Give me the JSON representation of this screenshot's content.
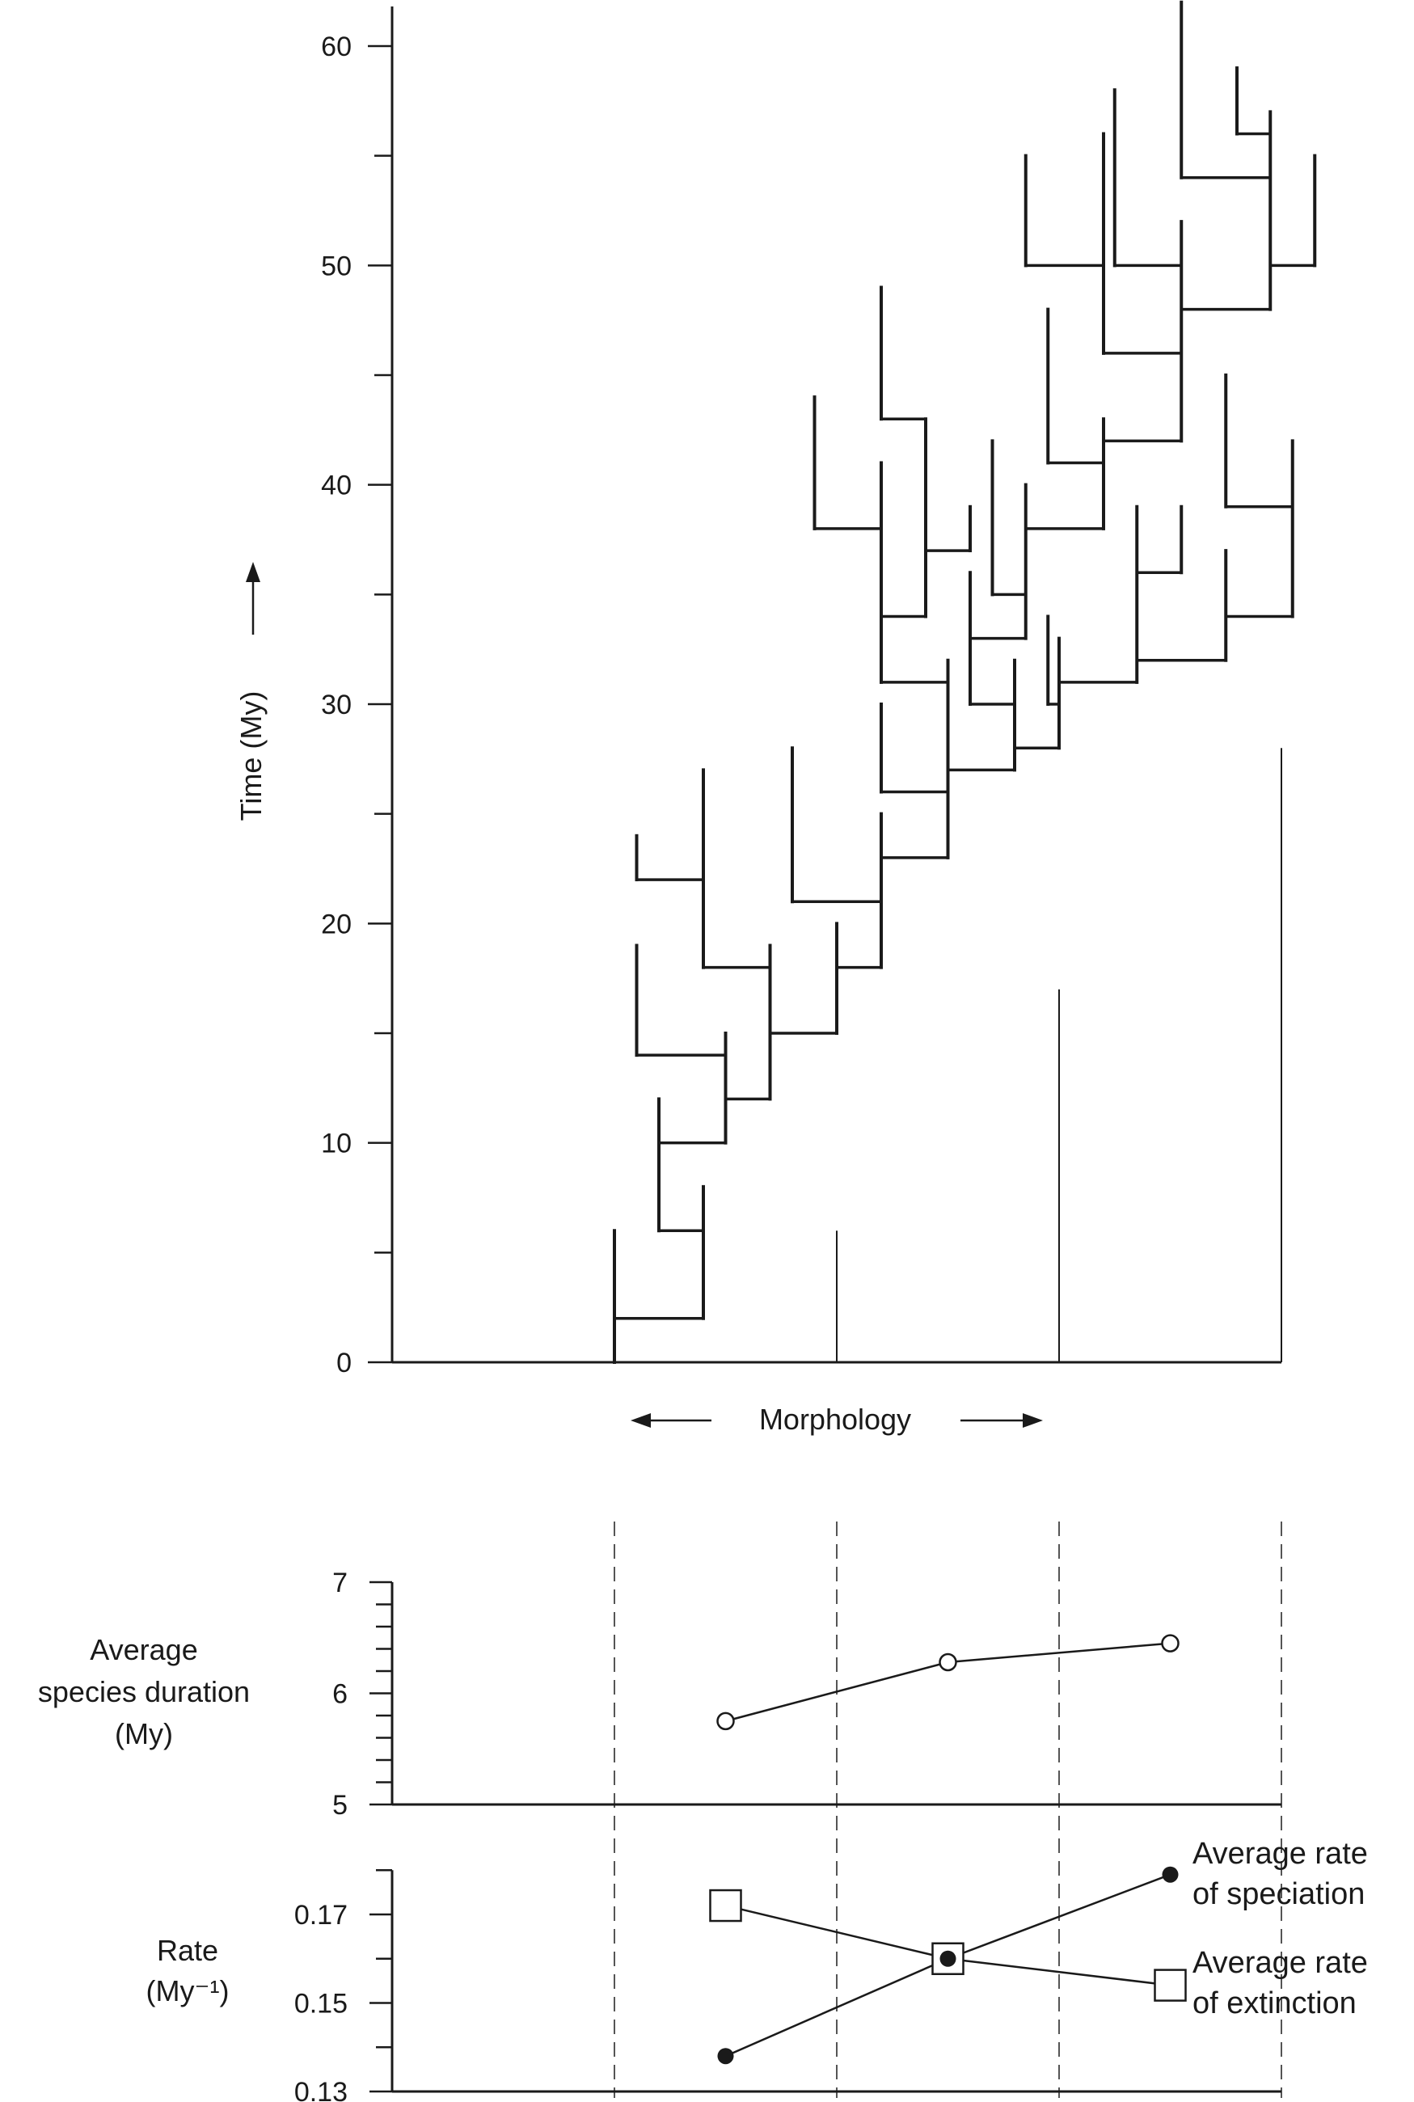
{
  "chart_data": [
    {
      "type": "phylogeny",
      "title": "",
      "ylabel": "Time (My)",
      "xlabel": "Morphology",
      "ylim": [
        0,
        62
      ],
      "y_ticks": [
        0,
        10,
        20,
        30,
        40,
        50,
        60
      ],
      "y_tick_labels": [
        "0",
        "10",
        "20",
        "30",
        "40",
        "50",
        "60"
      ],
      "x_range": [
        0,
        4
      ],
      "x_zone_boundaries": [
        1,
        2,
        3,
        4
      ],
      "zone_markers": [
        {
          "x": 2.0,
          "top": 6
        },
        {
          "x": 3.0,
          "top": 17
        },
        {
          "x": 4.0,
          "top": 28
        }
      ],
      "lineages": [
        {
          "x": 1.0,
          "start": 0,
          "end": 6
        },
        {
          "x": 1.4,
          "start": 2,
          "end": 8
        },
        {
          "x": 1.2,
          "start": 6,
          "end": 12
        },
        {
          "x": 1.5,
          "start": 10,
          "end": 15
        },
        {
          "x": 1.1,
          "start": 14,
          "end": 19
        },
        {
          "x": 1.7,
          "start": 12,
          "end": 19
        },
        {
          "x": 2.0,
          "start": 15,
          "end": 20
        },
        {
          "x": 1.4,
          "start": 18,
          "end": 27
        },
        {
          "x": 1.1,
          "start": 22,
          "end": 24
        },
        {
          "x": 2.2,
          "start": 18,
          "end": 25
        },
        {
          "x": 1.8,
          "start": 21,
          "end": 28
        },
        {
          "x": 2.5,
          "start": 23,
          "end": 32
        },
        {
          "x": 2.2,
          "start": 26,
          "end": 30
        },
        {
          "x": 2.8,
          "start": 27,
          "end": 32
        },
        {
          "x": 2.6,
          "start": 30,
          "end": 36
        },
        {
          "x": 3.0,
          "start": 28,
          "end": 33
        },
        {
          "x": 2.2,
          "start": 31,
          "end": 41
        },
        {
          "x": 2.4,
          "start": 34,
          "end": 43
        },
        {
          "x": 2.6,
          "start": 37,
          "end": 39
        },
        {
          "x": 2.2,
          "start": 43,
          "end": 49
        },
        {
          "x": 1.9,
          "start": 38,
          "end": 44
        },
        {
          "x": 2.7,
          "start": 35,
          "end": 42
        },
        {
          "x": 2.85,
          "start": 33,
          "end": 40
        },
        {
          "x": 2.95,
          "start": 30,
          "end": 34
        },
        {
          "x": 3.35,
          "start": 31,
          "end": 39
        },
        {
          "x": 3.55,
          "start": 36,
          "end": 39
        },
        {
          "x": 3.75,
          "start": 32,
          "end": 37
        },
        {
          "x": 4.05,
          "start": 34,
          "end": 42
        },
        {
          "x": 3.75,
          "start": 39,
          "end": 45
        },
        {
          "x": 3.2,
          "start": 38,
          "end": 43
        },
        {
          "x": 2.95,
          "start": 41,
          "end": 48
        },
        {
          "x": 3.55,
          "start": 42,
          "end": 52
        },
        {
          "x": 3.2,
          "start": 46,
          "end": 56
        },
        {
          "x": 2.85,
          "start": 50,
          "end": 55
        },
        {
          "x": 3.25,
          "start": 50,
          "end": 58
        },
        {
          "x": 3.95,
          "start": 48,
          "end": 57
        },
        {
          "x": 4.15,
          "start": 50,
          "end": 55
        },
        {
          "x": 3.55,
          "start": 54,
          "end": 62
        },
        {
          "x": 3.8,
          "start": 56,
          "end": 59
        }
      ],
      "speciation_connectors": [
        {
          "time": 2,
          "from_x": 1.0,
          "to_x": 1.4
        },
        {
          "time": 6,
          "from_x": 1.2,
          "to_x": 1.4
        },
        {
          "time": 10,
          "from_x": 1.2,
          "to_x": 1.5
        },
        {
          "time": 12,
          "from_x": 1.5,
          "to_x": 1.7
        },
        {
          "time": 14,
          "from_x": 1.1,
          "to_x": 1.5
        },
        {
          "time": 15,
          "from_x": 1.7,
          "to_x": 2.0
        },
        {
          "time": 18,
          "from_x": 1.4,
          "to_x": 1.7
        },
        {
          "time": 18,
          "from_x": 2.0,
          "to_x": 2.2
        },
        {
          "time": 22,
          "from_x": 1.1,
          "to_x": 1.4
        },
        {
          "time": 21,
          "from_x": 1.8,
          "to_x": 2.2
        },
        {
          "time": 23,
          "from_x": 2.2,
          "to_x": 2.5
        },
        {
          "time": 26,
          "from_x": 2.2,
          "to_x": 2.5
        },
        {
          "time": 27,
          "from_x": 2.5,
          "to_x": 2.8
        },
        {
          "time": 28,
          "from_x": 2.8,
          "to_x": 3.0
        },
        {
          "time": 30,
          "from_x": 2.6,
          "to_x": 2.8
        },
        {
          "time": 30,
          "from_x": 2.95,
          "to_x": 3.0
        },
        {
          "time": 31,
          "from_x": 2.2,
          "to_x": 2.5
        },
        {
          "time": 31,
          "from_x": 3.0,
          "to_x": 3.35
        },
        {
          "time": 32,
          "from_x": 3.35,
          "to_x": 3.75
        },
        {
          "time": 33,
          "from_x": 2.6,
          "to_x": 2.85
        },
        {
          "time": 34,
          "from_x": 2.2,
          "to_x": 2.4
        },
        {
          "time": 34,
          "from_x": 3.75,
          "to_x": 4.05
        },
        {
          "time": 35,
          "from_x": 2.7,
          "to_x": 2.85
        },
        {
          "time": 36,
          "from_x": 3.35,
          "to_x": 3.55
        },
        {
          "time": 37,
          "from_x": 2.4,
          "to_x": 2.6
        },
        {
          "time": 38,
          "from_x": 1.9,
          "to_x": 2.2
        },
        {
          "time": 38,
          "from_x": 2.85,
          "to_x": 3.2
        },
        {
          "time": 39,
          "from_x": 3.75,
          "to_x": 4.05
        },
        {
          "time": 41,
          "from_x": 2.95,
          "to_x": 3.2
        },
        {
          "time": 42,
          "from_x": 3.2,
          "to_x": 3.55
        },
        {
          "time": 43,
          "from_x": 2.2,
          "to_x": 2.4
        },
        {
          "time": 46,
          "from_x": 3.2,
          "to_x": 3.55
        },
        {
          "time": 48,
          "from_x": 3.55,
          "to_x": 3.95
        },
        {
          "time": 50,
          "from_x": 2.85,
          "to_x": 3.2
        },
        {
          "time": 50,
          "from_x": 3.25,
          "to_x": 3.55
        },
        {
          "time": 50,
          "from_x": 3.95,
          "to_x": 4.15
        },
        {
          "time": 54,
          "from_x": 3.55,
          "to_x": 3.95
        },
        {
          "time": 56,
          "from_x": 3.8,
          "to_x": 3.95
        }
      ]
    },
    {
      "type": "line",
      "ylabel_lines": [
        "Average",
        "species duration",
        "(My)"
      ],
      "ylim": [
        5,
        7
      ],
      "y_tick_labels": [
        "5",
        "6",
        "7"
      ],
      "y_minor_step": 0.2,
      "x": [
        1.5,
        2.5,
        3.5
      ],
      "series": [
        {
          "name": "Average species duration",
          "values": [
            5.75,
            6.28,
            6.45
          ],
          "marker": "open-circle"
        }
      ]
    },
    {
      "type": "line",
      "ylabel_lines": [
        "Rate",
        "(My⁻¹)"
      ],
      "ylim": [
        0.13,
        0.18
      ],
      "y_tick_labels": [
        "0.13",
        "0.15",
        "0.17"
      ],
      "y_tick_values": [
        0.13,
        0.15,
        0.17
      ],
      "y_minor_step": 0.01,
      "x": [
        1.5,
        2.5,
        3.5
      ],
      "series": [
        {
          "name": "Average rate of speciation",
          "values": [
            0.138,
            0.16,
            0.179
          ],
          "marker": "filled-circle",
          "legend_lines": [
            "Average rate",
            "of speciation"
          ]
        },
        {
          "name": "Average rate of extinction",
          "values": [
            0.172,
            0.16,
            0.154
          ],
          "marker": "open-square",
          "legend_lines": [
            "Average rate",
            "of extinction"
          ]
        }
      ]
    }
  ],
  "colors": {
    "ink": "#1a1a1a",
    "dashed": "#555555"
  }
}
